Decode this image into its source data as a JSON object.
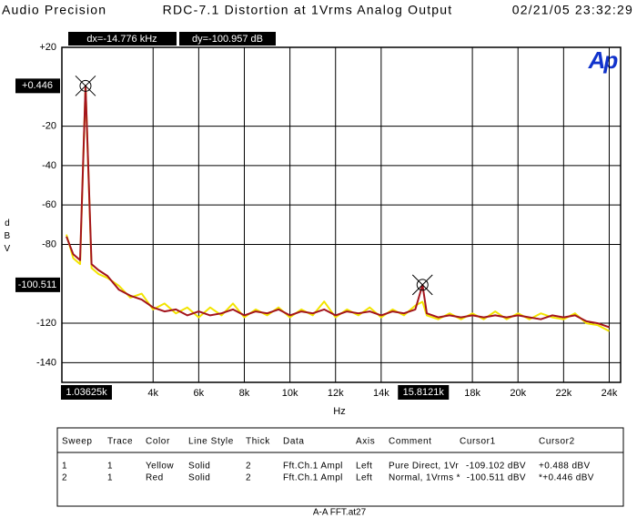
{
  "chart_data": {
    "type": "line",
    "brand": "Audio Precision",
    "title": "RDC-7.1 Distortion at 1Vrms Analog Output",
    "timestamp": "02/21/05 23:32:29",
    "logo": "Ap",
    "dx_readout": "dx=-14.776 kHz",
    "dy_readout": "dy=-100.957 dB",
    "y_label": "dBV",
    "x_label": "Hz",
    "footer": "A-A FFT.at27",
    "xlim": [
      0,
      24500
    ],
    "ylim": [
      -150,
      20
    ],
    "grid": true,
    "yticks": [
      {
        "value": 20,
        "label": "+20"
      },
      -20,
      -40,
      -60,
      -80,
      -120,
      -140
    ],
    "xticks": [
      {
        "value": 4000,
        "label": "4k"
      },
      {
        "value": 6000,
        "label": "6k"
      },
      {
        "value": 8000,
        "label": "8k"
      },
      {
        "value": 10000,
        "label": "10k"
      },
      {
        "value": 12000,
        "label": "12k"
      },
      {
        "value": 14000,
        "label": "14k"
      },
      {
        "value": 18000,
        "label": "18k"
      },
      {
        "value": 20000,
        "label": "20k"
      },
      {
        "value": 22000,
        "label": "22k"
      },
      {
        "value": 24000,
        "label": "24k"
      }
    ],
    "x": [
      200,
      500,
      800,
      1036,
      1300,
      1600,
      2000,
      2500,
      3000,
      3500,
      4000,
      4500,
      5000,
      5500,
      6000,
      6500,
      7000,
      7500,
      8000,
      8500,
      9000,
      9500,
      10000,
      10500,
      11000,
      11500,
      12000,
      12500,
      13000,
      13500,
      14000,
      14500,
      15000,
      15500,
      15812,
      16000,
      16500,
      17000,
      17500,
      18000,
      18500,
      19000,
      19500,
      20000,
      20500,
      21000,
      21500,
      22000,
      22500,
      23000,
      23500,
      24000
    ],
    "series": [
      {
        "color": "#f2e400",
        "values": [
          -75,
          -87,
          -90,
          0.488,
          -92,
          -95,
          -97,
          -101,
          -107,
          -105,
          -113,
          -110,
          -115,
          -112,
          -117,
          -112,
          -116,
          -110,
          -117,
          -113,
          -116,
          -112,
          -117,
          -113,
          -116,
          -109,
          -117,
          -113,
          -116,
          -112,
          -117,
          -113,
          -116,
          -111,
          -109.102,
          -116,
          -118,
          -115,
          -118,
          -115,
          -118,
          -114,
          -118,
          -115,
          -118,
          -115,
          -117,
          -118,
          -115,
          -120,
          -121,
          -124
        ]
      },
      {
        "color": "#a3141c",
        "values": [
          -76,
          -85,
          -88,
          0.446,
          -90,
          -93,
          -96,
          -103,
          -106,
          -108,
          -112,
          -114,
          -113,
          -116,
          -114,
          -116,
          -115,
          -113,
          -116,
          -114,
          -115,
          -113,
          -116,
          -114,
          -115,
          -113,
          -116,
          -114,
          -115,
          -114,
          -116,
          -114,
          -115,
          -113,
          -100.511,
          -115,
          -117,
          -116,
          -117,
          -116,
          -117,
          -116,
          -117,
          -116,
          -117,
          -118,
          -116,
          -117,
          -116,
          -119,
          -120,
          -122
        ]
      }
    ],
    "cursors": [
      {
        "x": 1036.25,
        "y": 0.446,
        "x_label": "1.03625k",
        "y_label": "+0.446"
      },
      {
        "x": 15812.1,
        "y": -100.511,
        "x_label": "15.8121k",
        "y_label": "-100.511"
      }
    ],
    "table": {
      "header": [
        "Sweep",
        "Trace",
        "Color",
        "Line Style",
        "Thick",
        "Data",
        "Axis",
        "Comment",
        "Cursor1",
        "Cursor2"
      ],
      "rows": [
        [
          "1",
          "1",
          "Yellow",
          "Solid",
          "2",
          "Fft.Ch.1 Ampl",
          "Left",
          "Pure Direct, 1Vr",
          "-109.102 dBV",
          "+0.488  dBV"
        ],
        [
          "2",
          "1",
          "Red",
          "Solid",
          "2",
          "Fft.Ch.1 Ampl",
          "Left",
          "Normal, 1Vrms *",
          "-100.511 dBV",
          "*+0.446  dBV"
        ]
      ]
    }
  }
}
